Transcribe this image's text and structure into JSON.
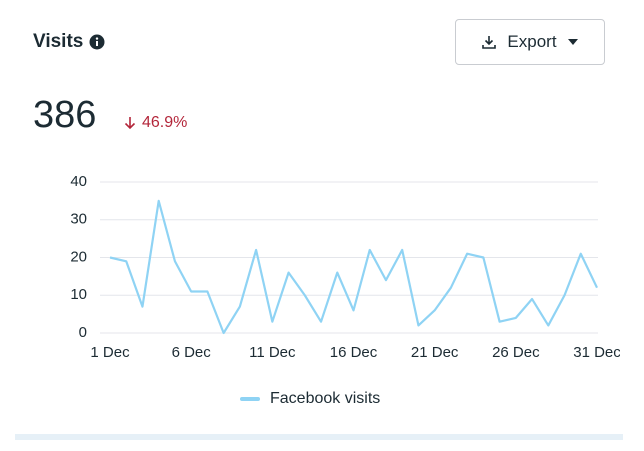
{
  "header": {
    "title": "Visits",
    "button": "Export",
    "total": "386",
    "change": "46.9%"
  },
  "chart_data": {
    "type": "line",
    "categories": [
      "1 Dec",
      null,
      null,
      null,
      null,
      "6 Dec",
      null,
      null,
      null,
      null,
      "11 Dec",
      null,
      null,
      null,
      null,
      "16 Dec",
      null,
      null,
      null,
      null,
      "21 Dec",
      null,
      null,
      null,
      null,
      "26 Dec",
      null,
      null,
      null,
      null,
      "31 Dec"
    ],
    "series": [
      {
        "name": "Facebook visits",
        "color": "#8fd3f4",
        "values": [
          20,
          19,
          7,
          35,
          19,
          11,
          11,
          0,
          7,
          22,
          3,
          16,
          10,
          3,
          16,
          6,
          22,
          14,
          22,
          2,
          6,
          12,
          21,
          20,
          3,
          4,
          9,
          2,
          10,
          21,
          12
        ]
      }
    ],
    "ylim": [
      0,
      40
    ],
    "yticks": [
      0,
      10,
      20,
      30,
      40
    ],
    "grid": true
  }
}
